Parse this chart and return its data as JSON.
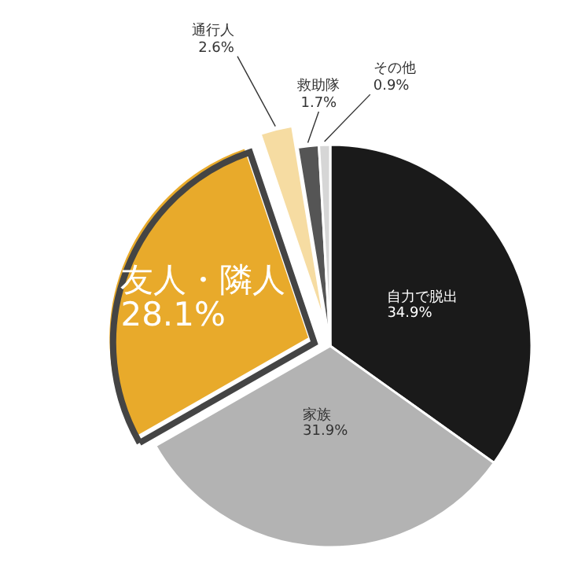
{
  "chart_data": {
    "type": "pie",
    "categories": [
      "自力で脱出",
      "家族",
      "友人・隣人",
      "通行人",
      "救助隊",
      "その他"
    ],
    "values": [
      34.9,
      31.9,
      28.1,
      2.6,
      1.7,
      0.9
    ],
    "value_labels": [
      "34.9%",
      "31.9%",
      "28.1%",
      "2.6%",
      "1.7%",
      "0.9%"
    ],
    "colors": [
      "#1a1a1a",
      "#b3b3b3",
      "#e8aa2b",
      "#f6dca2",
      "#555555",
      "#d6d6d6"
    ],
    "legend": false
  }
}
